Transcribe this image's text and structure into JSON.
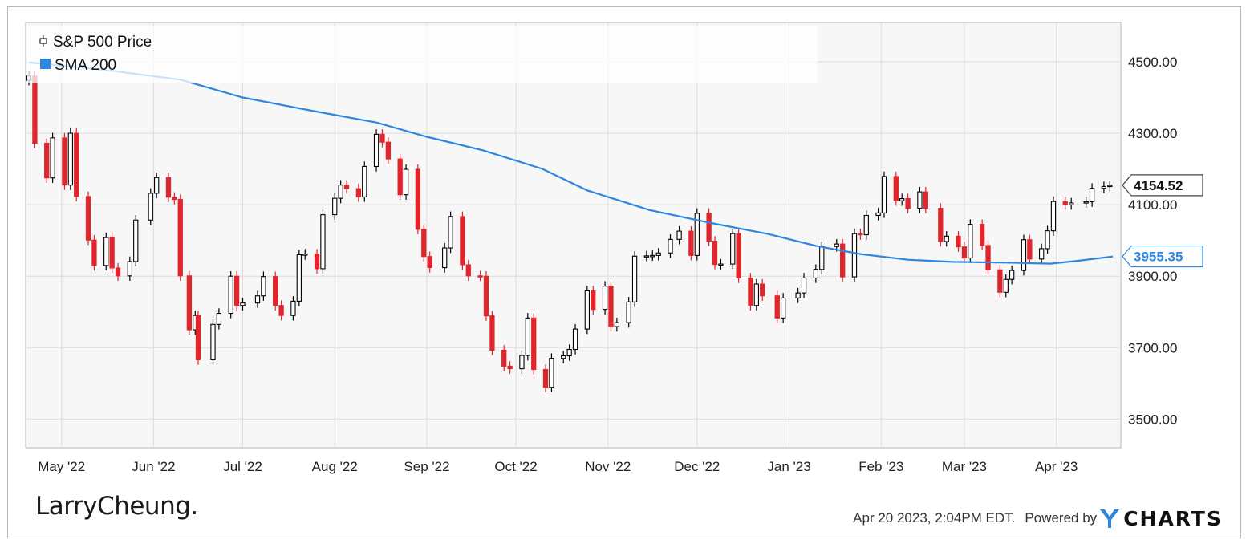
{
  "chart_data": {
    "type": "candlestick",
    "ylim": [
      3420,
      4610
    ],
    "y_ticks": [
      3500,
      3700,
      3900,
      4100,
      4300,
      4500
    ],
    "y_tick_labels": [
      "3500.00",
      "3700.00",
      "3900.00",
      "4100.00",
      "4300.00",
      "4500.00"
    ],
    "x_ticks": [
      {
        "label": "May '22",
        "date": "2022-05-01"
      },
      {
        "label": "Jun '22",
        "date": "2022-06-01"
      },
      {
        "label": "Jul '22",
        "date": "2022-07-01"
      },
      {
        "label": "Aug '22",
        "date": "2022-08-01"
      },
      {
        "label": "Sep '22",
        "date": "2022-09-01"
      },
      {
        "label": "Oct '22",
        "date": "2022-10-01"
      },
      {
        "label": "Nov '22",
        "date": "2022-11-01"
      },
      {
        "label": "Dec '22",
        "date": "2022-12-01"
      },
      {
        "label": "Jan '23",
        "date": "2023-01-01"
      },
      {
        "label": "Feb '23",
        "date": "2023-02-01"
      },
      {
        "label": "Mar '23",
        "date": "2023-03-01"
      },
      {
        "label": "Apr '23",
        "date": "2023-04-01"
      }
    ],
    "x_range": [
      "2022-04-20",
      "2023-04-20"
    ],
    "grid": true,
    "legend_position": "top-left",
    "series": [
      {
        "name": "S&P 500 Price",
        "kind": "candlestick",
        "up_color": "#000000",
        "down_color": "#e0262c",
        "last_value": 4154.52,
        "last_label": "4154.52",
        "closes": [
          [
            "2022-04-20",
            4460
          ],
          [
            "2022-04-22",
            4272
          ],
          [
            "2022-04-26",
            4175
          ],
          [
            "2022-04-28",
            4287
          ],
          [
            "2022-05-02",
            4155
          ],
          [
            "2022-05-04",
            4300
          ],
          [
            "2022-05-06",
            4123
          ],
          [
            "2022-05-10",
            4001
          ],
          [
            "2022-05-12",
            3930
          ],
          [
            "2022-05-16",
            4008
          ],
          [
            "2022-05-18",
            3923
          ],
          [
            "2022-05-20",
            3901
          ],
          [
            "2022-05-24",
            3941
          ],
          [
            "2022-05-26",
            4057
          ],
          [
            "2022-05-31",
            4132
          ],
          [
            "2022-06-02",
            4176
          ],
          [
            "2022-06-06",
            4121
          ],
          [
            "2022-06-08",
            4115
          ],
          [
            "2022-06-10",
            3901
          ],
          [
            "2022-06-13",
            3750
          ],
          [
            "2022-06-15",
            3790
          ],
          [
            "2022-06-16",
            3666
          ],
          [
            "2022-06-21",
            3765
          ],
          [
            "2022-06-23",
            3796
          ],
          [
            "2022-06-27",
            3900
          ],
          [
            "2022-06-29",
            3818
          ],
          [
            "2022-07-01",
            3825
          ],
          [
            "2022-07-06",
            3845
          ],
          [
            "2022-07-08",
            3899
          ],
          [
            "2022-07-12",
            3818
          ],
          [
            "2022-07-14",
            3790
          ],
          [
            "2022-07-18",
            3830
          ],
          [
            "2022-07-20",
            3960
          ],
          [
            "2022-07-22",
            3962
          ],
          [
            "2022-07-26",
            3921
          ],
          [
            "2022-07-28",
            4072
          ],
          [
            "2022-08-01",
            4118
          ],
          [
            "2022-08-03",
            4155
          ],
          [
            "2022-08-05",
            4145
          ],
          [
            "2022-08-09",
            4122
          ],
          [
            "2022-08-11",
            4207
          ],
          [
            "2022-08-15",
            4297
          ],
          [
            "2022-08-17",
            4275
          ],
          [
            "2022-08-19",
            4228
          ],
          [
            "2022-08-23",
            4128
          ],
          [
            "2022-08-25",
            4199
          ],
          [
            "2022-08-29",
            4031
          ],
          [
            "2022-08-31",
            3955
          ],
          [
            "2022-09-02",
            3924
          ],
          [
            "2022-09-07",
            3979
          ],
          [
            "2022-09-09",
            4067
          ],
          [
            "2022-09-13",
            3932
          ],
          [
            "2022-09-15",
            3901
          ],
          [
            "2022-09-19",
            3900
          ],
          [
            "2022-09-21",
            3789
          ],
          [
            "2022-09-23",
            3693
          ],
          [
            "2022-09-27",
            3648
          ],
          [
            "2022-09-29",
            3641
          ],
          [
            "2022-10-03",
            3678
          ],
          [
            "2022-10-05",
            3783
          ],
          [
            "2022-10-07",
            3639
          ],
          [
            "2022-10-11",
            3589
          ],
          [
            "2022-10-13",
            3670
          ],
          [
            "2022-10-17",
            3677
          ],
          [
            "2022-10-19",
            3695
          ],
          [
            "2022-10-21",
            3752
          ],
          [
            "2022-10-25",
            3859
          ],
          [
            "2022-10-27",
            3807
          ],
          [
            "2022-10-31",
            3872
          ],
          [
            "2022-11-02",
            3759
          ],
          [
            "2022-11-04",
            3770
          ],
          [
            "2022-11-08",
            3828
          ],
          [
            "2022-11-10",
            3956
          ],
          [
            "2022-11-14",
            3957
          ],
          [
            "2022-11-16",
            3958
          ],
          [
            "2022-11-18",
            3965
          ],
          [
            "2022-11-22",
            4003
          ],
          [
            "2022-11-25",
            4026
          ],
          [
            "2022-11-29",
            3958
          ],
          [
            "2022-12-01",
            4076
          ],
          [
            "2022-12-05",
            3998
          ],
          [
            "2022-12-07",
            3933
          ],
          [
            "2022-12-09",
            3934
          ],
          [
            "2022-12-13",
            4019
          ],
          [
            "2022-12-15",
            3895
          ],
          [
            "2022-12-19",
            3818
          ],
          [
            "2022-12-21",
            3878
          ],
          [
            "2022-12-23",
            3845
          ],
          [
            "2022-12-28",
            3783
          ],
          [
            "2022-12-30",
            3839
          ],
          [
            "2023-01-04",
            3853
          ],
          [
            "2023-01-06",
            3895
          ],
          [
            "2023-01-10",
            3919
          ],
          [
            "2023-01-12",
            3983
          ],
          [
            "2023-01-17",
            3990
          ],
          [
            "2023-01-19",
            3898
          ],
          [
            "2023-01-23",
            4019
          ],
          [
            "2023-01-25",
            4016
          ],
          [
            "2023-01-27",
            4070
          ],
          [
            "2023-01-31",
            4077
          ],
          [
            "2023-02-02",
            4179
          ],
          [
            "2023-02-06",
            4111
          ],
          [
            "2023-02-08",
            4117
          ],
          [
            "2023-02-10",
            4090
          ],
          [
            "2023-02-14",
            4136
          ],
          [
            "2023-02-16",
            4090
          ],
          [
            "2023-02-21",
            3997
          ],
          [
            "2023-02-23",
            4012
          ],
          [
            "2023-02-27",
            3982
          ],
          [
            "2023-03-01",
            3951
          ],
          [
            "2023-03-03",
            4045
          ],
          [
            "2023-03-07",
            3986
          ],
          [
            "2023-03-09",
            3918
          ],
          [
            "2023-03-13",
            3855
          ],
          [
            "2023-03-15",
            3891
          ],
          [
            "2023-03-17",
            3916
          ],
          [
            "2023-03-21",
            4002
          ],
          [
            "2023-03-23",
            3948
          ],
          [
            "2023-03-27",
            3977
          ],
          [
            "2023-03-29",
            4027
          ],
          [
            "2023-03-31",
            4109
          ],
          [
            "2023-04-04",
            4100
          ],
          [
            "2023-04-06",
            4105
          ],
          [
            "2023-04-11",
            4108
          ],
          [
            "2023-04-13",
            4146
          ],
          [
            "2023-04-17",
            4151
          ],
          [
            "2023-04-19",
            4154
          ]
        ]
      },
      {
        "name": "SMA 200",
        "kind": "line",
        "color": "#2f86e0",
        "last_value": 3955.35,
        "last_label": "3955.35",
        "points": [
          [
            "2022-04-20",
            4498
          ],
          [
            "2022-05-15",
            4478
          ],
          [
            "2022-06-10",
            4450
          ],
          [
            "2022-07-01",
            4400
          ],
          [
            "2022-07-25",
            4362
          ],
          [
            "2022-08-15",
            4330
          ],
          [
            "2022-09-01",
            4290
          ],
          [
            "2022-09-20",
            4252
          ],
          [
            "2022-10-10",
            4200
          ],
          [
            "2022-10-25",
            4140
          ],
          [
            "2022-11-15",
            4085
          ],
          [
            "2022-12-05",
            4050
          ],
          [
            "2022-12-25",
            4018
          ],
          [
            "2023-01-10",
            3985
          ],
          [
            "2023-01-25",
            3962
          ],
          [
            "2023-02-10",
            3946
          ],
          [
            "2023-02-25",
            3940
          ],
          [
            "2023-03-15",
            3938
          ],
          [
            "2023-03-30",
            3935
          ],
          [
            "2023-04-08",
            3943
          ],
          [
            "2023-04-20",
            3955
          ]
        ]
      }
    ]
  },
  "footer": {
    "brand": "LarryCheung.",
    "timestamp": "Apr 20 2023, 2:04PM EDT.",
    "powered_by": "Powered by",
    "ycharts_logo": "YCHARTS",
    "ycharts_letters": "CHARTS"
  },
  "icons": {
    "price_legend_icon": "candlestick-icon",
    "sma_legend_icon": "square-swatch-icon"
  }
}
